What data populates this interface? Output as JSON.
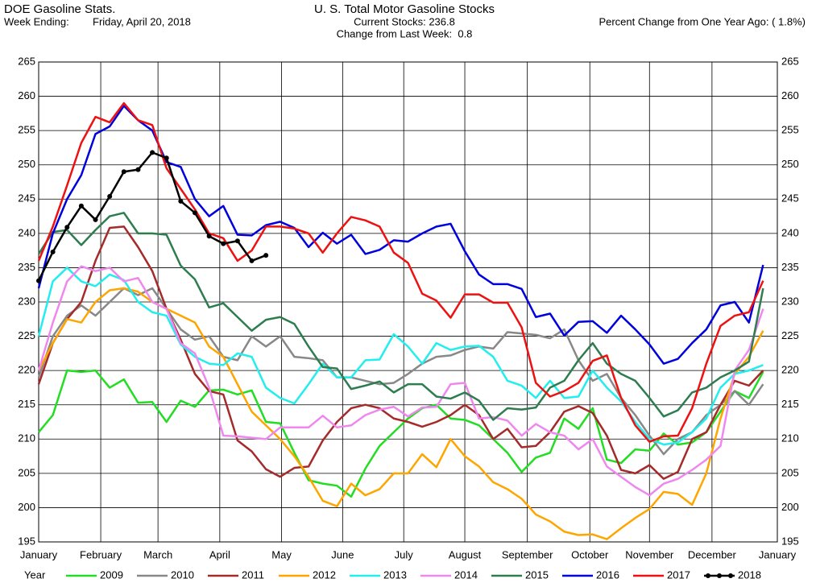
{
  "header": {
    "source": "DOE Gasoline Stats.",
    "week_label": "Week Ending:",
    "week_date": "Friday, April 20, 2018",
    "current_stocks": "Current Stocks: 236.8",
    "weekly_change": "Change from Last Week:  0.8",
    "yearly_change": "Percent Change from One Year Ago: ( 1.8%)"
  },
  "chart_data": {
    "type": "line",
    "title": "U. S. Total Motor Gasoline Stocks",
    "legend_title": "Year",
    "grid": true,
    "legend": "bottom",
    "x": [
      1,
      2,
      3,
      4,
      5,
      6,
      7,
      8,
      9,
      10,
      11,
      12,
      13,
      14,
      15,
      16,
      17,
      18,
      19,
      20,
      21,
      22,
      23,
      24,
      25,
      26,
      27,
      28,
      29,
      30,
      31,
      32,
      33,
      34,
      35,
      36,
      37,
      38,
      39,
      40,
      41,
      42,
      43,
      44,
      45,
      46,
      47,
      48,
      49,
      50,
      51,
      52
    ],
    "xlim": [
      1,
      53
    ],
    "xticks": [
      {
        "value": 1,
        "label": "January"
      },
      {
        "value": 5.37,
        "label": "February"
      },
      {
        "value": 9.4,
        "label": "March"
      },
      {
        "value": 13.75,
        "label": "April"
      },
      {
        "value": 18.1,
        "label": "May"
      },
      {
        "value": 22.4,
        "label": "June"
      },
      {
        "value": 26.7,
        "label": "July"
      },
      {
        "value": 31.0,
        "label": "August"
      },
      {
        "value": 35.4,
        "label": "September"
      },
      {
        "value": 39.8,
        "label": "October"
      },
      {
        "value": 44.0,
        "label": "November"
      },
      {
        "value": 48.4,
        "label": "December"
      },
      {
        "value": 53,
        "label": "January"
      }
    ],
    "ylim": [
      195,
      265
    ],
    "yticks": [
      195,
      200,
      205,
      210,
      215,
      220,
      225,
      230,
      235,
      240,
      245,
      250,
      255,
      260,
      265
    ],
    "series": [
      {
        "name": "2009",
        "color": "#22dd22",
        "values": [
          211,
          213.5,
          220,
          219.8,
          220,
          217.5,
          218.7,
          215.3,
          215.4,
          212.5,
          215.6,
          214.7,
          217.1,
          217.2,
          216.5,
          217.1,
          212.5,
          212.3,
          208,
          204,
          203.5,
          203.2,
          201.6,
          205.7,
          209,
          211,
          213,
          214.5,
          215,
          213,
          212.8,
          212,
          210,
          208,
          205.2,
          207.3,
          208,
          213,
          211.5,
          214.5,
          207,
          206.5,
          208.5,
          208.3,
          210.8,
          209.2,
          209.5,
          211,
          214,
          217,
          216,
          219.8
        ]
      },
      {
        "name": "2010",
        "color": "#888888",
        "values": [
          219,
          225,
          228,
          229.5,
          228,
          230,
          232,
          231,
          232,
          229,
          226,
          224.5,
          225,
          222,
          221.5,
          225,
          223.5,
          225,
          222,
          221.8,
          221.5,
          219,
          219,
          218.5,
          218,
          218.2,
          219.5,
          221,
          222,
          222.2,
          223,
          223.5,
          223.2,
          225.6,
          225.4,
          225.2,
          224.7,
          226,
          221.5,
          218.5,
          219.5,
          216,
          213.5,
          210.5,
          207.8,
          210,
          211,
          213.5,
          215,
          217,
          215,
          218
        ]
      },
      {
        "name": "2011",
        "color": "#a52a2a",
        "values": [
          218,
          224,
          227.5,
          230,
          236,
          240.8,
          241,
          238,
          234.5,
          229,
          224.5,
          219.5,
          217,
          216.5,
          209.8,
          208.2,
          205.6,
          204.5,
          205.8,
          206,
          209.8,
          212.5,
          214.5,
          215,
          214.5,
          213,
          212.5,
          211.8,
          212.5,
          213.5,
          215,
          213.5,
          210,
          211.5,
          208.8,
          209,
          211,
          214,
          214.8,
          213.8,
          210.5,
          205.5,
          205,
          206.2,
          204.2,
          205.2,
          210,
          211,
          215,
          218.5,
          217.8,
          220
        ]
      },
      {
        "name": "2012",
        "color": "#ffa500",
        "values": [
          220,
          224,
          227.5,
          227,
          230,
          231.7,
          232,
          231.5,
          230,
          229,
          228,
          227,
          223.5,
          222,
          218,
          214,
          212,
          210,
          207.5,
          204.5,
          201,
          200.2,
          203.5,
          201.8,
          202.7,
          205,
          205,
          207.8,
          205.9,
          210,
          207.5,
          206,
          203.7,
          202.7,
          201.3,
          199,
          198,
          196.5,
          196,
          196.1,
          195.4,
          197,
          198.5,
          199.8,
          202.3,
          202,
          200.4,
          205,
          213,
          219.5,
          222,
          225.8
        ]
      },
      {
        "name": "2013",
        "color": "#22eeee",
        "values": [
          225,
          233,
          235,
          233,
          232.3,
          234,
          233.2,
          230,
          228.5,
          228,
          223.8,
          222,
          221,
          220.8,
          222.5,
          222,
          217.5,
          216,
          215.2,
          218,
          221,
          219,
          219,
          221.5,
          221.6,
          225.3,
          223.5,
          221,
          224,
          223,
          223.5,
          223.6,
          222,
          218.5,
          217.8,
          216,
          218.5,
          216,
          216.2,
          220,
          217.5,
          215.5,
          212.5,
          210,
          209.2,
          209.5,
          211,
          213,
          217.5,
          219.5,
          220,
          220.8
        ]
      },
      {
        "name": "2014",
        "color": "#ee88ee",
        "values": [
          220,
          227,
          233,
          235.2,
          234.5,
          235,
          233,
          233.5,
          230,
          229,
          224,
          222.5,
          217.5,
          210.5,
          210.4,
          210.2,
          210,
          211.7,
          211.7,
          211.7,
          213.4,
          211.7,
          212,
          213.5,
          214.3,
          214.7,
          213.3,
          214.6,
          214.7,
          218,
          218.2,
          213,
          213.2,
          212.7,
          210.5,
          212.2,
          211,
          210.5,
          208.5,
          210,
          206,
          204.5,
          203,
          201.8,
          203.5,
          204.2,
          205.5,
          207,
          209,
          220,
          223,
          229
        ]
      },
      {
        "name": "2015",
        "color": "#2e7d4f",
        "values": [
          237,
          240.2,
          240.5,
          238.3,
          240.5,
          242.5,
          243,
          240,
          240,
          239.8,
          235.3,
          233.3,
          229.2,
          229.8,
          227.8,
          225.8,
          227.4,
          227.8,
          226.8,
          223.5,
          220.5,
          220.3,
          217.3,
          217.8,
          218.4,
          216.8,
          218,
          218,
          216.2,
          215.9,
          216.8,
          215.6,
          212.8,
          214.5,
          214.3,
          214.6,
          217.5,
          218.5,
          221.5,
          224,
          221,
          219.5,
          218.5,
          216,
          213.3,
          214.2,
          216.8,
          217.5,
          219,
          220,
          221.3,
          232
        ]
      },
      {
        "name": "2016",
        "color": "#0000dd",
        "values": [
          232,
          240,
          245,
          248.5,
          254.5,
          255.6,
          258.6,
          256.5,
          255,
          250.4,
          249.7,
          245,
          242.5,
          244,
          239.8,
          239.7,
          241.2,
          241.7,
          240.8,
          238,
          240.1,
          238.5,
          239.8,
          237,
          237.6,
          239,
          238.8,
          240,
          241,
          241.4,
          237.4,
          234,
          232.6,
          232.6,
          231.9,
          227.8,
          228.3,
          225.1,
          227.1,
          227.2,
          225.5,
          228,
          226,
          223.8,
          221,
          221.7,
          224,
          226,
          229.5,
          230,
          227,
          235.4
        ]
      },
      {
        "name": "2017",
        "color": "#ee1111",
        "values": [
          236,
          241,
          247,
          253.2,
          257,
          256.2,
          259,
          256.5,
          255.8,
          249.5,
          246.5,
          243.5,
          240,
          239.3,
          236,
          237.5,
          241,
          241,
          240.7,
          240,
          237.2,
          240,
          242.4,
          241.9,
          241,
          237.2,
          235.7,
          231.2,
          230.2,
          227.7,
          231.1,
          231.1,
          229.9,
          229.9,
          226.3,
          218.2,
          216.2,
          217,
          218.2,
          221.4,
          222.2,
          216,
          212,
          209.6,
          210.4,
          210.5,
          214.5,
          221,
          226.5,
          228,
          228.5,
          233.1
        ]
      },
      {
        "name": "2018",
        "color": "#000000",
        "markers": true,
        "values": [
          233.1,
          237.3,
          240.9,
          244,
          242,
          245.4,
          249,
          249.3,
          251.8,
          251,
          244.7,
          243,
          239.6,
          238.5,
          238.9,
          236,
          236.8,
          null,
          null,
          null,
          null,
          null,
          null,
          null,
          null,
          null,
          null,
          null,
          null,
          null,
          null,
          null,
          null,
          null,
          null,
          null,
          null,
          null,
          null,
          null,
          null,
          null,
          null,
          null,
          null,
          null,
          null,
          null,
          null,
          null,
          null,
          null
        ]
      }
    ]
  }
}
